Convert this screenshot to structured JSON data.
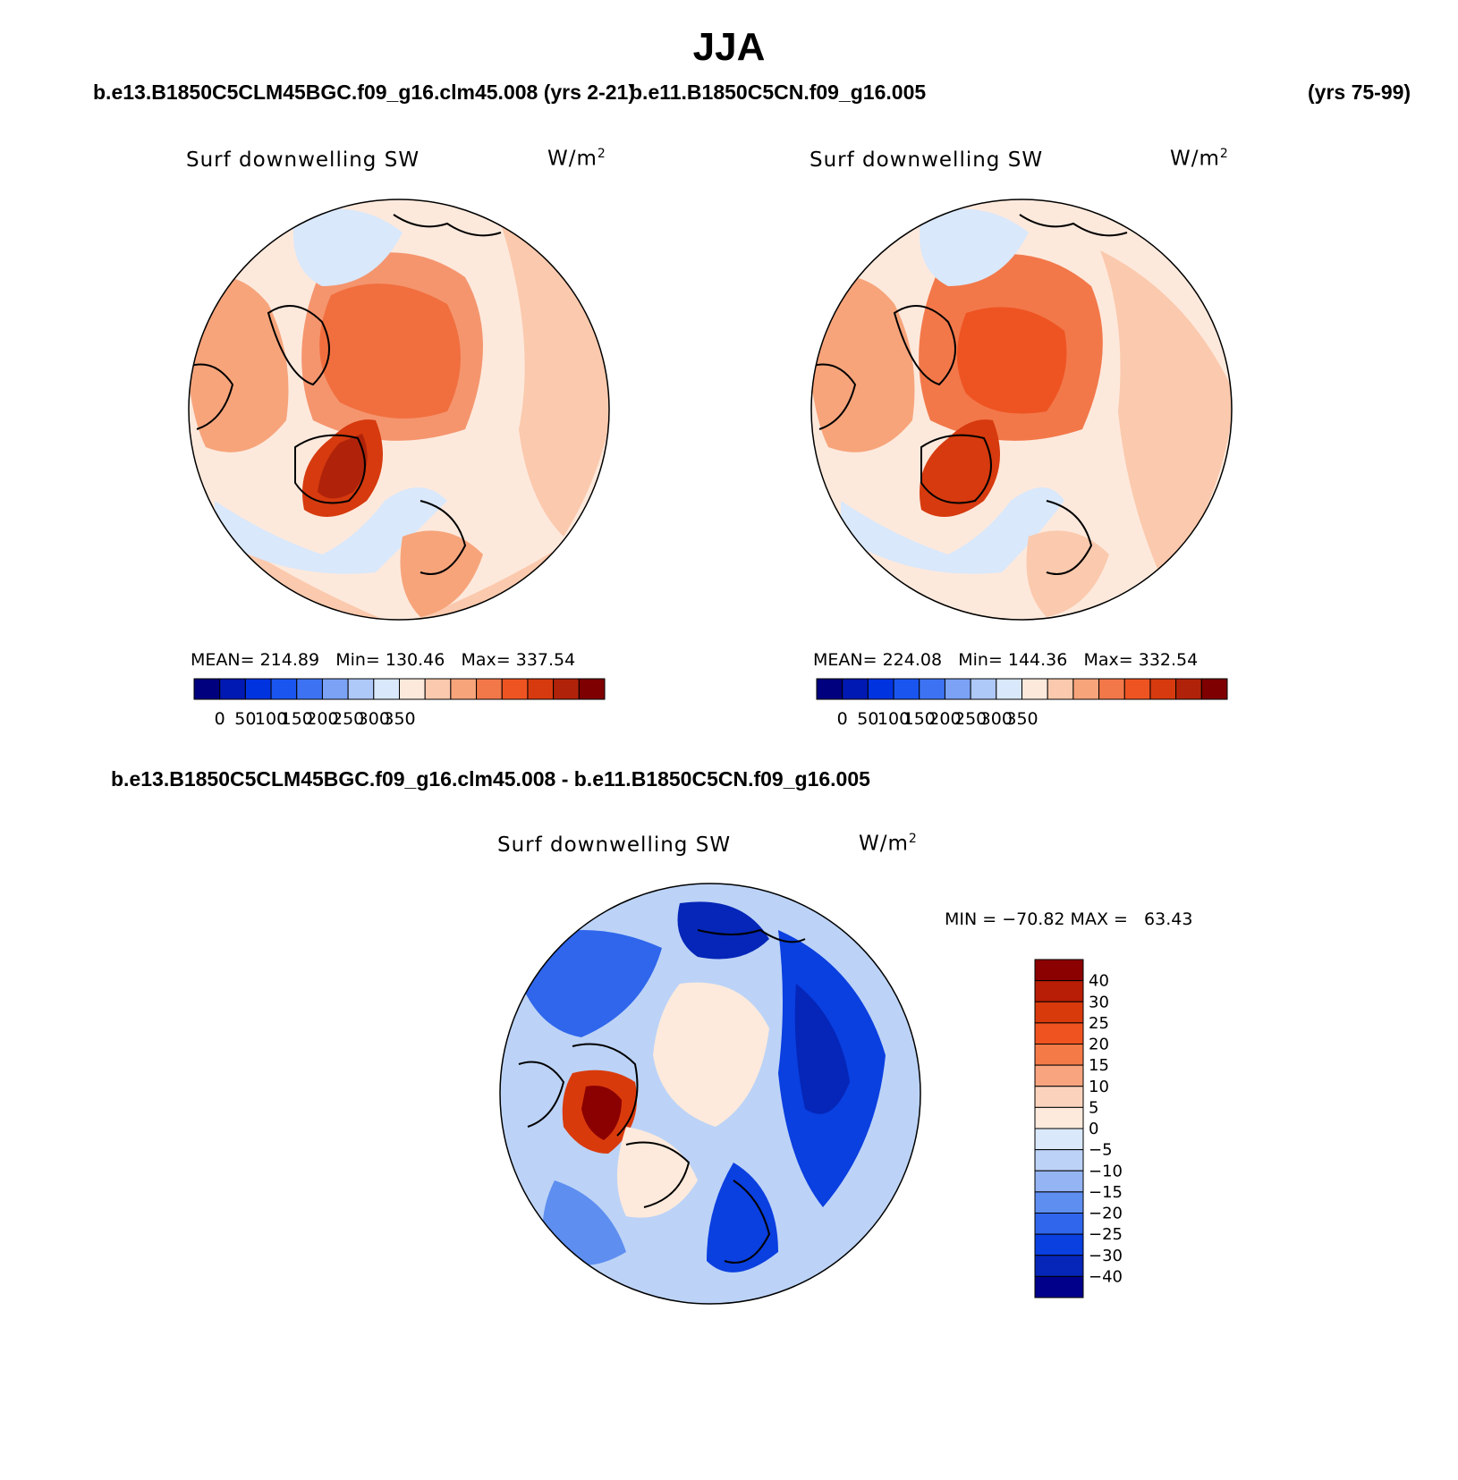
{
  "page": {
    "title": "JJA"
  },
  "chart_data": [
    {
      "type": "heatmap",
      "title": "b.e13.B1850C5CLM45BGC.f09_g16.clm45.008 (yrs 2-21)",
      "case": "b.e13.B1850C5CLM45BGC.f09_g16.clm45.008",
      "years": "(yrs 2-21)",
      "variable": "Surf downwelling SW",
      "units": "W/m",
      "units_exp": "2",
      "projection": "north polar stereographic",
      "stats": {
        "mean": "214.89",
        "min": "130.46",
        "max": "337.54"
      },
      "stats_labels": {
        "mean": "MEAN=",
        "min": "Min=",
        "max": "Max="
      },
      "colorbar": {
        "orientation": "horizontal",
        "levels": [
          "0",
          "50",
          "100",
          "150",
          "200",
          "250",
          "300",
          "350"
        ],
        "colors": [
          "#00007f",
          "#0019b2",
          "#0033e0",
          "#1a55f0",
          "#3d73f2",
          "#7ba2f5",
          "#aec8f7",
          "#d9e8fb",
          "#fde9dc",
          "#fbc9ad",
          "#f7a47b",
          "#f2784a",
          "#ee5422",
          "#d63a0e",
          "#b0230a",
          "#7f0000"
        ]
      }
    },
    {
      "type": "heatmap",
      "title": "b.e11.B1850C5CN.f09_g16.005 (yrs 75-99)",
      "case": "b.e11.B1850C5CN.f09_g16.005",
      "years": "(yrs 75-99)",
      "variable": "Surf downwelling SW",
      "units": "W/m",
      "units_exp": "2",
      "projection": "north polar stereographic",
      "stats": {
        "mean": "224.08",
        "min": "144.36",
        "max": "332.54"
      },
      "stats_labels": {
        "mean": "MEAN=",
        "min": "Min=",
        "max": "Max="
      },
      "colorbar": {
        "orientation": "horizontal",
        "levels": [
          "0",
          "50",
          "100",
          "150",
          "200",
          "250",
          "300",
          "350"
        ],
        "colors": [
          "#00007f",
          "#0019b2",
          "#0033e0",
          "#1a55f0",
          "#3d73f2",
          "#7ba2f5",
          "#aec8f7",
          "#d9e8fb",
          "#fde9dc",
          "#fbc9ad",
          "#f7a47b",
          "#f2784a",
          "#ee5422",
          "#d63a0e",
          "#b0230a",
          "#7f0000"
        ]
      }
    },
    {
      "type": "heatmap",
      "title": "b.e13.B1850C5CLM45BGC.f09_g16.clm45.008 - b.e11.B1850C5CN.f09_g16.005",
      "variable": "Surf downwelling SW",
      "units": "W/m",
      "units_exp": "2",
      "projection": "north polar stereographic",
      "minmax": "MIN = −70.82 MAX =   63.43",
      "colorbar": {
        "orientation": "vertical",
        "levels": [
          "40",
          "30",
          "25",
          "20",
          "15",
          "10",
          "5",
          "0",
          "−5",
          "−10",
          "−15",
          "−20",
          "−25",
          "−30",
          "−40"
        ],
        "colors": [
          "#8b0000",
          "#b81e05",
          "#d93a0c",
          "#ef5420",
          "#f47b48",
          "#f8a47e",
          "#fbd3bd",
          "#fdeadc",
          "#d9e8fb",
          "#bcd3f7",
          "#94b4f3",
          "#5e8ef0",
          "#2f66ec",
          "#0a3fe0",
          "#0526b8",
          "#00008b"
        ]
      }
    }
  ]
}
